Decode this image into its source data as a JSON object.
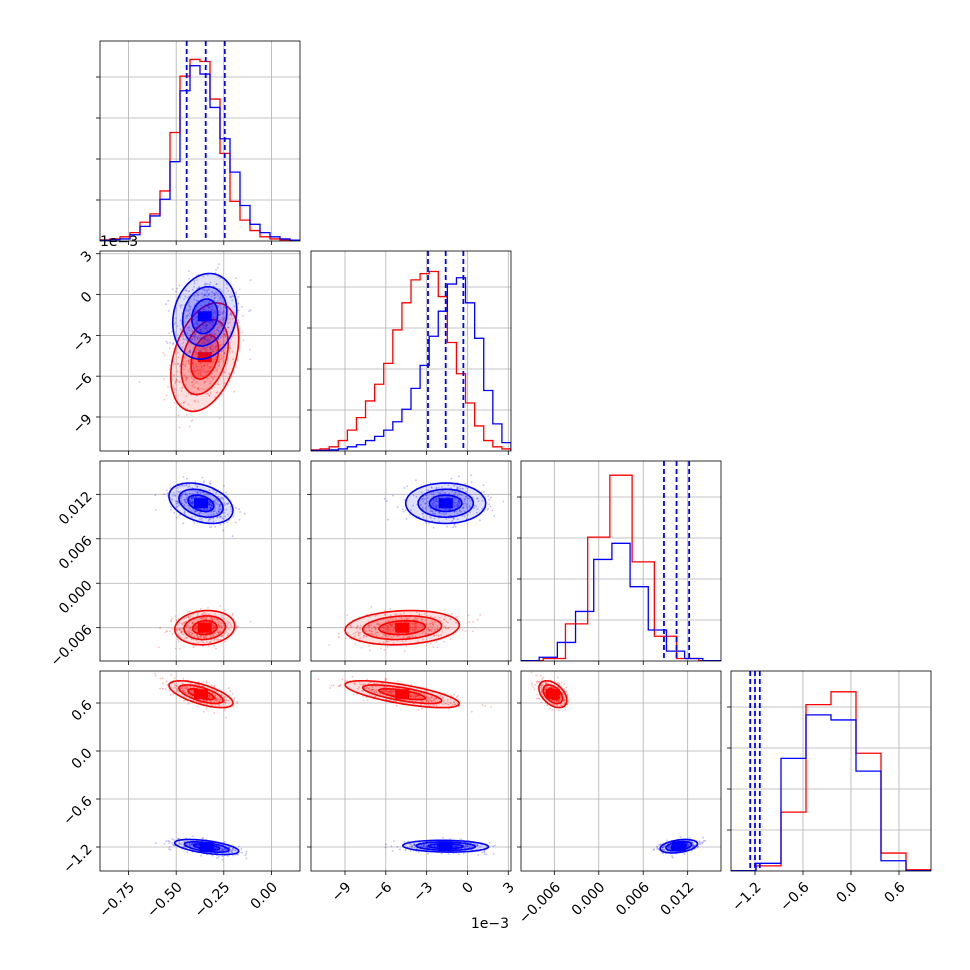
{
  "chart_data": {
    "type": "corner",
    "colors": {
      "series_a": "#ff0000",
      "series_b": "#0000ff",
      "grid": "#b0b0b0"
    },
    "parameters": [
      {
        "axis_range": [
          -0.9,
          0.15
        ],
        "ticks": [
          "−0.75",
          "−0.50",
          "−0.25",
          "0.00"
        ],
        "tick_values": [
          -0.75,
          -0.5,
          -0.25,
          0.0
        ],
        "offset_label": "",
        "quantiles_blue": [
          -0.445,
          -0.345,
          -0.245
        ],
        "hist_red": [
          0.5,
          1,
          2,
          4,
          9,
          13,
          24,
          52,
          79,
          87,
          86,
          68,
          42,
          19,
          10,
          5,
          2,
          1,
          0.5,
          0.2
        ],
        "hist_blue": [
          0.3,
          0.6,
          1,
          3,
          7,
          12,
          20,
          38,
          72,
          84,
          80,
          64,
          49,
          33,
          17,
          8,
          4,
          2,
          1,
          0.4
        ],
        "hist_ymax": 92
      },
      {
        "axis_range": [
          -11.5,
          3.2
        ],
        "ticks": [
          "−9",
          "−6",
          "−3",
          "0",
          "3"
        ],
        "tick_values": [
          -9,
          -6,
          -3,
          0,
          3
        ],
        "offset_label": "1e−3",
        "quantiles_blue": [
          -2.9,
          -1.6,
          -0.3
        ],
        "hist_red": [
          0.5,
          1,
          2,
          5,
          10,
          16,
          24,
          32,
          42,
          58,
          71,
          82,
          85,
          86,
          74,
          52,
          37,
          23,
          12,
          5,
          2,
          1
        ],
        "hist_blue": [
          0.2,
          0.3,
          0.5,
          1,
          2,
          3,
          5,
          7,
          10,
          14,
          20,
          30,
          41,
          55,
          67,
          80,
          83,
          71,
          54,
          29,
          13,
          4
        ],
        "hist_ymax": 92
      },
      {
        "axis_range": [
          -0.0105,
          0.0165
        ],
        "ticks": [
          "−0.006",
          "0.000",
          "0.006",
          "0.012"
        ],
        "tick_values": [
          -0.006,
          0.0,
          0.006,
          0.012
        ],
        "offset_label": "",
        "quantiles_blue": [
          0.0088,
          0.0105,
          0.0122
        ],
        "hist_red": [
          0.3,
          2,
          30,
          100,
          150,
          80,
          20,
          2,
          0.3
        ],
        "hist_blue": [
          0.3,
          3,
          15,
          40,
          82,
          95,
          60,
          25,
          8,
          2,
          0.3
        ],
        "hist_ymax": 155
      },
      {
        "axis_range": [
          -1.5,
          1.0
        ],
        "ticks": [
          "−1.2",
          "−0.6",
          "0.0",
          "0.6"
        ],
        "tick_values": [
          -1.2,
          -0.6,
          0.0,
          0.6
        ],
        "offset_label": "",
        "quantiles_blue": [
          -1.26,
          -1.2,
          -1.14
        ],
        "hist_red": [
          0.3,
          4,
          46,
          130,
          140,
          92,
          14,
          1
        ],
        "hist_blue": [
          0.3,
          6,
          88,
          122,
          118,
          78,
          8,
          0.3
        ],
        "hist_ymax": 150
      }
    ],
    "left_offset_label": "1e−3",
    "clouds": [
      {
        "pair": [
          0,
          1
        ],
        "red": {
          "center": [
            -0.35,
            -4.6
          ],
          "sd": [
            0.085,
            1.9
          ],
          "corr": 0.35
        },
        "blue": {
          "center": [
            -0.35,
            -1.6
          ],
          "sd": [
            0.08,
            1.5
          ],
          "corr": 0.15
        }
      },
      {
        "pair": [
          0,
          2
        ],
        "red": {
          "center": [
            -0.35,
            -0.006
          ],
          "sd": [
            0.075,
            0.0011
          ],
          "corr": 0.1
        },
        "blue": {
          "center": [
            -0.37,
            0.0108
          ],
          "sd": [
            0.08,
            0.0013
          ],
          "corr": -0.35
        }
      },
      {
        "pair": [
          1,
          2
        ],
        "red": {
          "center": [
            -4.8,
            -0.006
          ],
          "sd": [
            2.0,
            0.0011
          ],
          "corr": 0.15
        },
        "blue": {
          "center": [
            -1.6,
            0.0108
          ],
          "sd": [
            1.4,
            0.0013
          ],
          "corr": 0.0
        }
      },
      {
        "pair": [
          0,
          3
        ],
        "red": {
          "center": [
            -0.37,
            0.71
          ],
          "sd": [
            0.08,
            0.08
          ],
          "corr": -0.65
        },
        "blue": {
          "center": [
            -0.34,
            -1.2
          ],
          "sd": [
            0.08,
            0.045
          ],
          "corr": -0.55
        }
      },
      {
        "pair": [
          1,
          3
        ],
        "red": {
          "center": [
            -4.8,
            0.71
          ],
          "sd": [
            2.0,
            0.08
          ],
          "corr": -0.7
        },
        "blue": {
          "center": [
            -1.6,
            -1.19
          ],
          "sd": [
            1.5,
            0.035
          ],
          "corr": -0.1
        }
      },
      {
        "pair": [
          2,
          3
        ],
        "red": {
          "center": [
            -0.0062,
            0.71
          ],
          "sd": [
            0.0009,
            0.08
          ],
          "corr": -0.45
        },
        "blue": {
          "center": [
            0.0108,
            -1.19
          ],
          "sd": [
            0.0012,
            0.04
          ],
          "corr": 0.35
        }
      }
    ]
  }
}
